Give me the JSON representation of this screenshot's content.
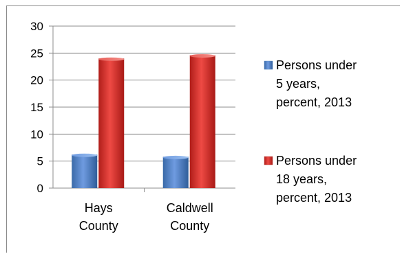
{
  "chart_data": {
    "type": "bar",
    "title": "",
    "xlabel": "",
    "ylabel": "",
    "categories": [
      [
        "Hays",
        "County"
      ],
      [
        "Caldwell",
        "County"
      ]
    ],
    "series": [
      {
        "name": "Persons under 5 years, percent, 2013",
        "name_lines": [
          "Persons under",
          "5 years,",
          "percent, 2013"
        ],
        "color": "#4f81bd",
        "values": [
          6.2,
          5.8
        ]
      },
      {
        "name": "Persons under 18 years, percent, 2013",
        "name_lines": [
          "Persons under",
          "18 years,",
          "percent, 2013"
        ],
        "color": "#c0504d",
        "values": [
          24.0,
          24.6
        ]
      }
    ],
    "ylim": [
      0,
      30
    ],
    "yticks": [
      0,
      5,
      10,
      15,
      20,
      25,
      30
    ],
    "grid": true,
    "legend_position": "right"
  }
}
